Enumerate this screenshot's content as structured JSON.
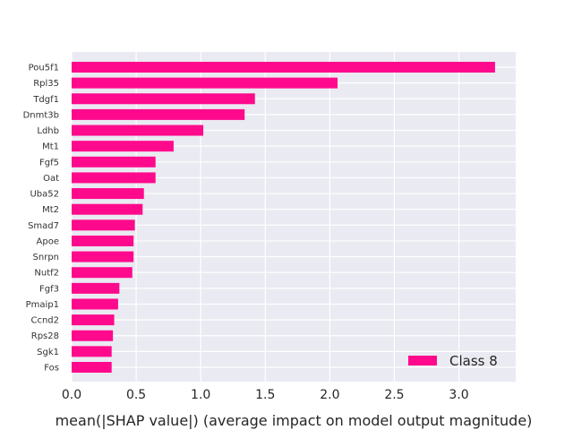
{
  "chart_data": {
    "type": "bar",
    "orientation": "horizontal",
    "categories": [
      "Pou5f1",
      "Rpl35",
      "Tdgf1",
      "Dnmt3b",
      "Ldhb",
      "Mt1",
      "Fgf5",
      "Oat",
      "Uba52",
      "Mt2",
      "Smad7",
      "Apoe",
      "Snrpn",
      "Nutf2",
      "Fgf3",
      "Pmaip1",
      "Ccnd2",
      "Rps28",
      "Sgk1",
      "Fos"
    ],
    "series": [
      {
        "name": "Class 8",
        "color": "#ff0a8c",
        "values": [
          3.28,
          2.06,
          1.42,
          1.34,
          1.02,
          0.79,
          0.65,
          0.65,
          0.56,
          0.55,
          0.49,
          0.48,
          0.48,
          0.47,
          0.37,
          0.36,
          0.33,
          0.32,
          0.31,
          0.31
        ]
      }
    ],
    "xlabel": "mean(|SHAP value|) (average impact on model output magnitude)",
    "ylabel": "",
    "xlim": [
      0,
      3.44
    ],
    "xticks": [
      0,
      0.5,
      1.0,
      1.5,
      2.0,
      2.5,
      3.0
    ],
    "xtick_labels": [
      "0.0",
      "0.5",
      "1.0",
      "1.5",
      "2.0",
      "2.5",
      "3.0"
    ],
    "grid": true,
    "legend_position": "lower-right",
    "background_color": "#eaeaf2",
    "grid_color": "#ffffff"
  }
}
